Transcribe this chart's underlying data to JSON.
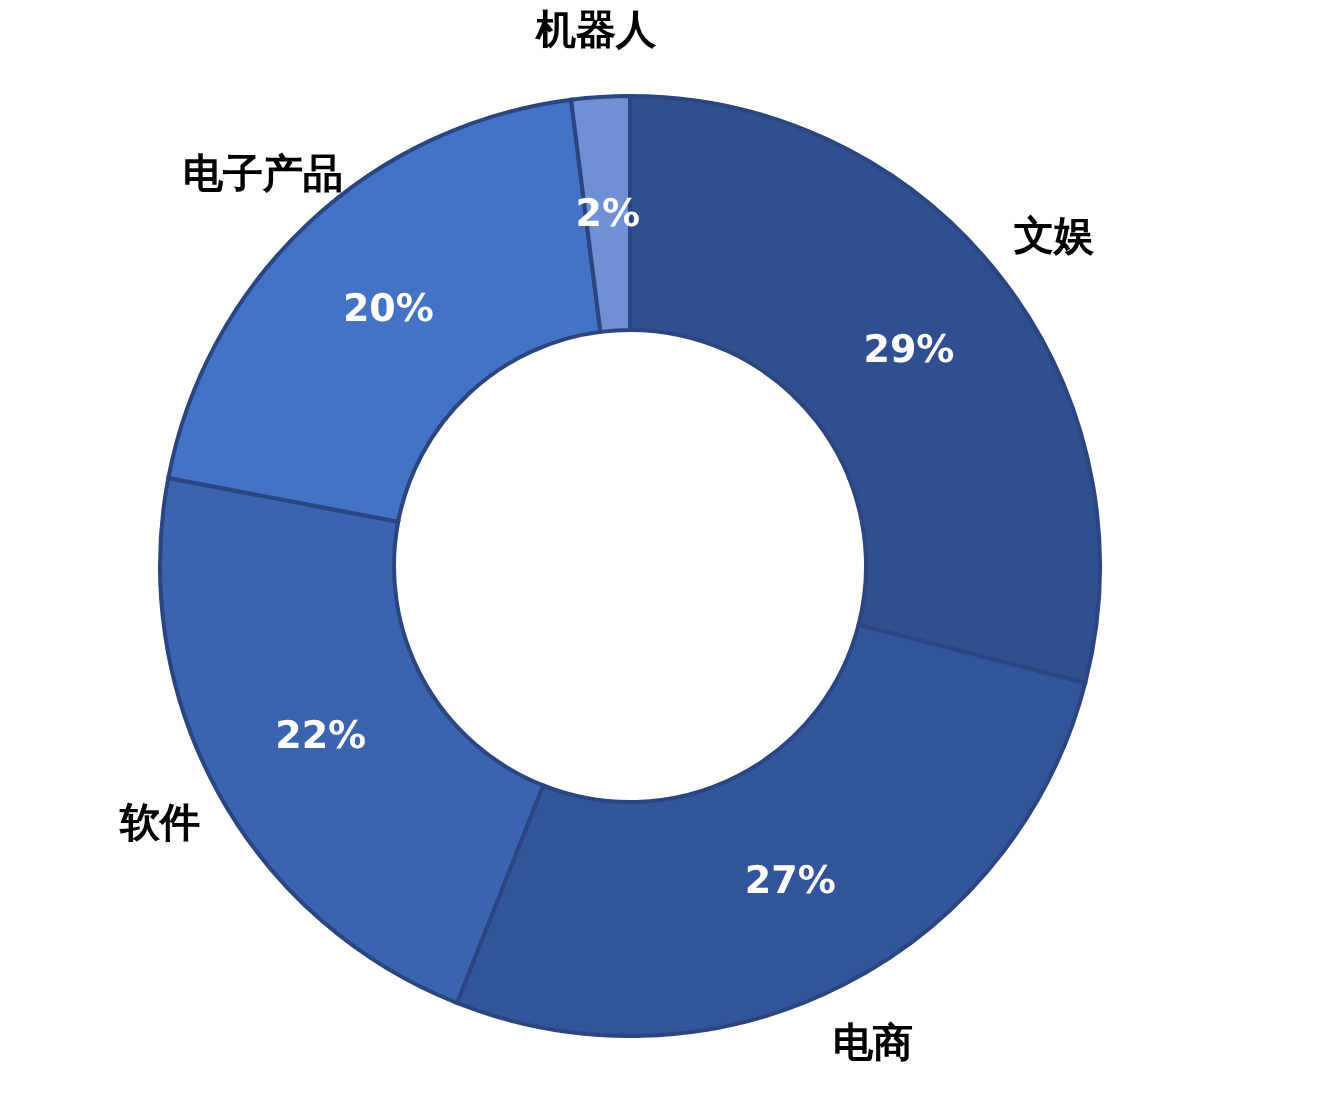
{
  "chart_data": {
    "type": "donut",
    "categories": [
      "文娱",
      "电商",
      "软件",
      "电子产品",
      "机器人"
    ],
    "values": [
      29,
      27,
      22,
      20,
      2
    ],
    "value_labels": [
      "29%",
      "27%",
      "22%",
      "20%",
      "2%"
    ],
    "colors": [
      "#2f4f8e",
      "#31549b",
      "#3a63b0",
      "#4472c4",
      "#7090d6"
    ],
    "legend": false
  }
}
